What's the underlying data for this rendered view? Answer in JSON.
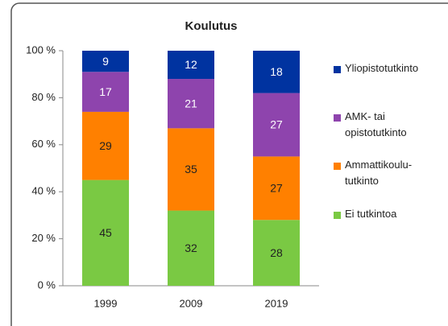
{
  "chart_data": {
    "type": "stacked_bar",
    "title": "Koulutus",
    "categories": [
      "1999",
      "2009",
      "2019"
    ],
    "series": [
      {
        "name": "Ei tutkintoa",
        "color": "#7ac943",
        "label_color": "#222",
        "values": [
          45,
          32,
          28
        ]
      },
      {
        "name": "Ammattikoulu-tutkinto",
        "color": "#ff8000",
        "label_color": "#222",
        "values": [
          29,
          35,
          27
        ]
      },
      {
        "name": "AMK- tai opistotutkinto",
        "color": "#8e44ad",
        "label_color": "#fff",
        "values": [
          17,
          21,
          27
        ]
      },
      {
        "name": "Yliopistotutkinto",
        "color": "#0033a0",
        "label_color": "#fff",
        "values": [
          9,
          12,
          18
        ]
      }
    ],
    "ylim": [
      0,
      100
    ],
    "yticks": [
      {
        "value": 0,
        "label": "0 %"
      },
      {
        "value": 20,
        "label": "20 %"
      },
      {
        "value": 40,
        "label": "40 %"
      },
      {
        "value": 60,
        "label": "60 %"
      },
      {
        "value": 80,
        "label": "80 %"
      },
      {
        "value": 100,
        "label": "100 %"
      }
    ],
    "legend": "right"
  }
}
